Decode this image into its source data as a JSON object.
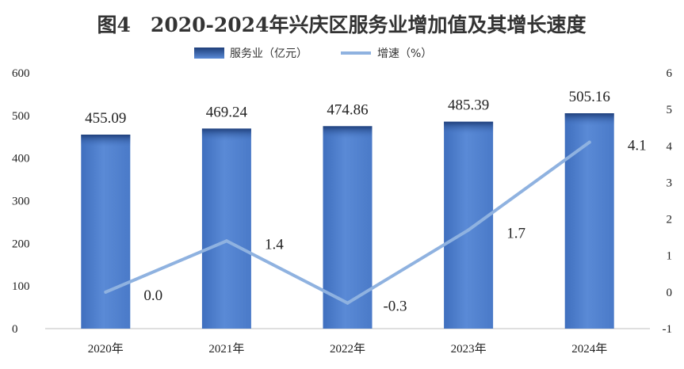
{
  "chart_data": {
    "type": "bar",
    "title": "图4　2020-2024年兴庆区服务业增加值及其增长速度",
    "categories": [
      "2020年",
      "2021年",
      "2022年",
      "2023年",
      "2024年"
    ],
    "series": [
      {
        "name": "服务业（亿元）",
        "type": "bar",
        "axis": "left",
        "values": [
          455.09,
          469.24,
          474.86,
          485.39,
          505.16
        ],
        "labels": [
          "455.09",
          "469.24",
          "474.86",
          "485.39",
          "505.16"
        ],
        "color": "#4f7fcc"
      },
      {
        "name": "增速（%）",
        "type": "line",
        "axis": "right",
        "values": [
          0.0,
          1.4,
          -0.3,
          1.7,
          4.1
        ],
        "labels": [
          "0.0",
          "1.4",
          "-0.3",
          "1.7",
          "4.1"
        ],
        "color": "#8fb2e0"
      }
    ],
    "y_left": {
      "min": 0,
      "max": 600,
      "ticks": [
        "0",
        "100",
        "200",
        "300",
        "400",
        "500",
        "600"
      ]
    },
    "y_right": {
      "min": -1,
      "max": 6,
      "ticks": [
        "-1",
        "0",
        "1",
        "2",
        "3",
        "4",
        "5",
        "6"
      ]
    },
    "legend_position": "top-center",
    "grid": false
  }
}
